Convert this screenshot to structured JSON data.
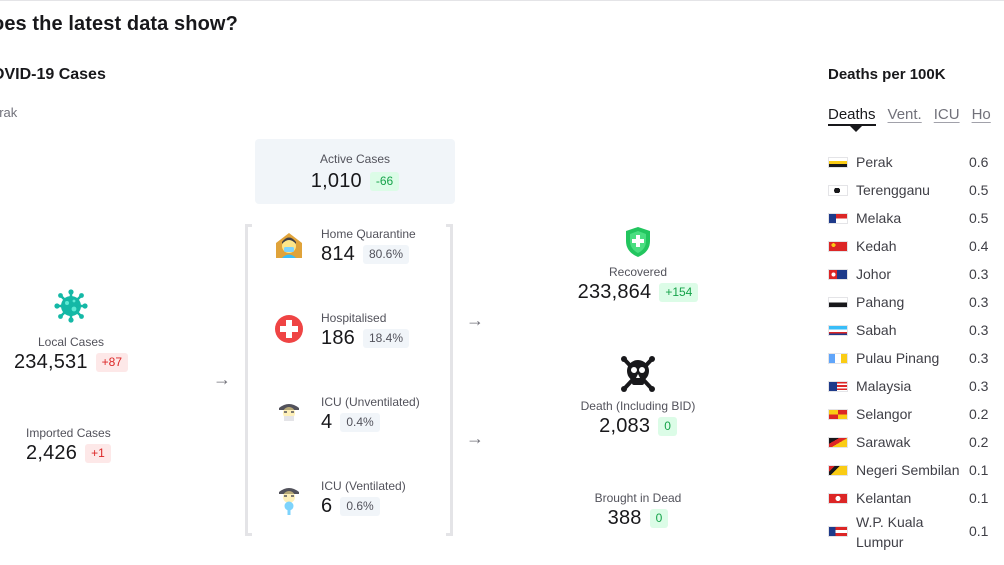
{
  "page": {
    "title": "oes the latest data show?"
  },
  "cases_section": {
    "title": "OVID-19 Cases",
    "state": "erak"
  },
  "local_cases": {
    "label": "Local Cases",
    "value": "234,531",
    "delta": "+87"
  },
  "imported_cases": {
    "label": "Imported Cases",
    "value": "2,426",
    "delta": "+1"
  },
  "active_cases": {
    "label": "Active Cases",
    "value": "1,010",
    "delta": "-66"
  },
  "care": [
    {
      "label": "Home Quarantine",
      "value": "814",
      "pct": "80.6%",
      "icon": "home-quarantine-icon"
    },
    {
      "label": "Hospitalised",
      "value": "186",
      "pct": "18.4%",
      "icon": "hospital-cross-icon"
    },
    {
      "label": "ICU (Unventilated)",
      "value": "4",
      "pct": "0.4%",
      "icon": "icu-unventilated-icon"
    },
    {
      "label": "ICU (Ventilated)",
      "value": "6",
      "pct": "0.6%",
      "icon": "icu-ventilated-icon"
    }
  ],
  "recovered": {
    "label": "Recovered",
    "value": "233,864",
    "delta": "+154",
    "icon": "shield-plus-icon"
  },
  "deaths": {
    "label": "Death (Including BID)",
    "value": "2,083",
    "delta": "0",
    "icon": "skull-crossbones-icon"
  },
  "brought_in_dead": {
    "label": "Brought in Dead",
    "value": "388",
    "delta": "0"
  },
  "ranking": {
    "title": "Deaths per 100K",
    "tabs": [
      "Deaths",
      "Vent.",
      "ICU",
      "Ho"
    ],
    "active_tab": "Deaths",
    "rows": [
      {
        "name": "Perak",
        "value": "0.6"
      },
      {
        "name": "Terengganu",
        "value": "0.5"
      },
      {
        "name": "Melaka",
        "value": "0.5"
      },
      {
        "name": "Kedah",
        "value": "0.4"
      },
      {
        "name": "Johor",
        "value": "0.3"
      },
      {
        "name": "Pahang",
        "value": "0.3"
      },
      {
        "name": "Sabah",
        "value": "0.3"
      },
      {
        "name": "Pulau Pinang",
        "value": "0.3"
      },
      {
        "name": "Malaysia",
        "value": "0.3"
      },
      {
        "name": "Selangor",
        "value": "0.2"
      },
      {
        "name": "Sarawak",
        "value": "0.2"
      },
      {
        "name": "Negeri Sembilan",
        "value": "0.1"
      },
      {
        "name": "Kelantan",
        "value": "0.1"
      },
      {
        "name": "W.P. Kuala Lumpur",
        "value": "0.1"
      }
    ]
  },
  "colors": {
    "increase": "#dc2626",
    "decrease": "#16a34a",
    "virus": "#14b8a6",
    "text": "#18181b",
    "muted": "#71717a"
  }
}
